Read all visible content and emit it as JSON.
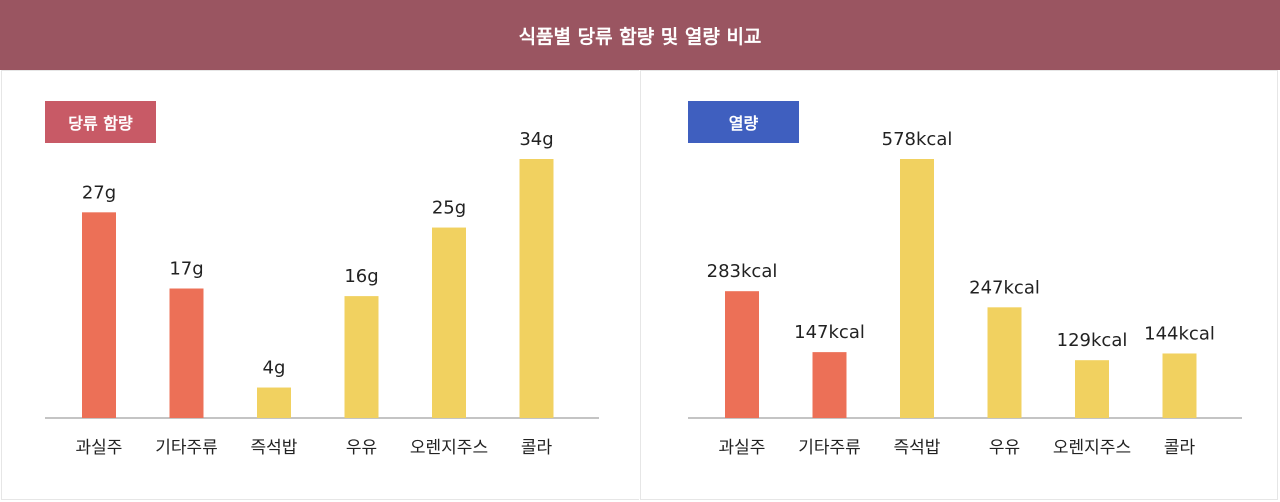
{
  "header": {
    "title": "식품별 당류 함량 및 열량 비교"
  },
  "colors": {
    "header_bg": "#9a5561",
    "badge_sugar": "#c85a66",
    "badge_cal": "#3f5fbf",
    "bar_orange": "#ec7057",
    "bar_yellow": "#f1d160",
    "axis": "#888888"
  },
  "chart_data": [
    {
      "type": "bar",
      "title": "당류 함량",
      "categories": [
        "과실주",
        "기타주류",
        "즉석밥",
        "우유",
        "오렌지주스",
        "콜라"
      ],
      "values": [
        27,
        17,
        4,
        16,
        25,
        34
      ],
      "value_labels": [
        "27g",
        "17g",
        "4g",
        "16g",
        "25g",
        "34g"
      ],
      "bar_colors": [
        "#ec7057",
        "#ec7057",
        "#f1d160",
        "#f1d160",
        "#f1d160",
        "#f1d160"
      ],
      "unit": "g",
      "ylim": [
        0,
        34
      ]
    },
    {
      "type": "bar",
      "title": "열량",
      "categories": [
        "과실주",
        "기타주류",
        "즉석밥",
        "우유",
        "오렌지주스",
        "콜라"
      ],
      "values": [
        283,
        147,
        578,
        247,
        129,
        144
      ],
      "value_labels": [
        "283kcal",
        "147kcal",
        "578kcal",
        "247kcal",
        "129kcal",
        "144kcal"
      ],
      "bar_colors": [
        "#ec7057",
        "#ec7057",
        "#f1d160",
        "#f1d160",
        "#f1d160",
        "#f1d160"
      ],
      "unit": "kcal",
      "ylim": [
        0,
        578
      ]
    }
  ]
}
